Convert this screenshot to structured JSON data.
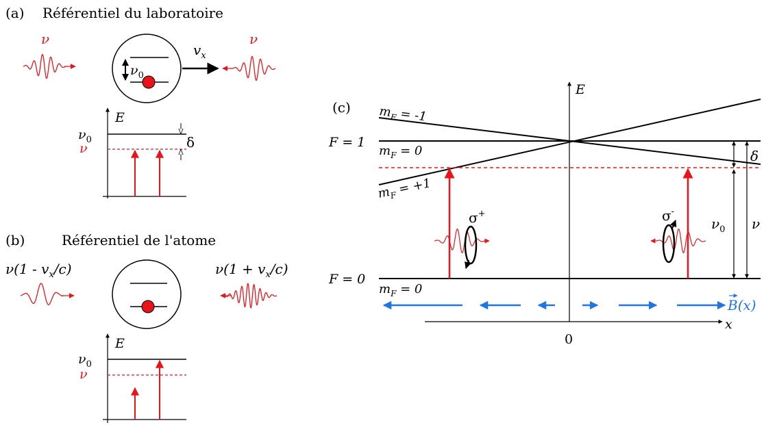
{
  "colors": {
    "red": "#e8141a",
    "blue": "#1f74e8",
    "black": "#000000"
  },
  "panel_a": {
    "label": "(a)",
    "title": "Référentiel du laboratoire",
    "nu_left": "ν",
    "nu_right": "ν",
    "velocity": "v",
    "velocity_sub": "x",
    "atom_nu0": "ν",
    "atom_nu0_sub": "0",
    "energy_axis": "E",
    "level_nu0": "ν",
    "level_nu0_sub": "0",
    "level_nu": "ν",
    "detuning": "δ"
  },
  "panel_b": {
    "label": "(b)",
    "title": "Référentiel de l'atome",
    "freq_left": "ν(1 - v",
    "freq_left_sub": "x",
    "freq_left_end": "/c)",
    "freq_right": "ν(1 + v",
    "freq_right_sub": "x",
    "freq_right_end": "/c)",
    "energy_axis": "E",
    "level_nu0": "ν",
    "level_nu0_sub": "0",
    "level_nu": "ν"
  },
  "panel_c": {
    "label": "(c)",
    "energy_axis": "E",
    "x_axis": "x",
    "origin": "0",
    "F1": "F = 1",
    "F0": "F = 0",
    "mF_minus1": "m",
    "mF_minus1_sub": "F",
    "mF_minus1_val": " = -1",
    "mF_0_upper": "m",
    "mF_0_upper_sub": "F",
    "mF_0_upper_val": " = 0",
    "mF_plus1": "m",
    "mF_plus1_sub": "F",
    "mF_plus1_val": " = +1",
    "mF_0_lower": "m",
    "mF_0_lower_sub": "F",
    "mF_0_lower_val": " = 0",
    "sigma_plus": "σ",
    "sigma_plus_sup": "+",
    "sigma_minus": "σ",
    "sigma_minus_sup": "-",
    "detuning": "δ",
    "nu0": "ν",
    "nu0_sub": "0",
    "nu": "ν",
    "field": "B",
    "field_arg": "(x)"
  }
}
